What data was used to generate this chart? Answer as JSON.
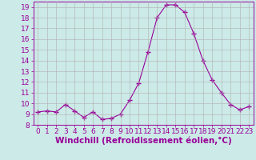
{
  "x": [
    0,
    1,
    2,
    3,
    4,
    5,
    6,
    7,
    8,
    9,
    10,
    11,
    12,
    13,
    14,
    15,
    16,
    17,
    18,
    19,
    20,
    21,
    22,
    23
  ],
  "y": [
    9.2,
    9.3,
    9.2,
    9.9,
    9.3,
    8.7,
    9.2,
    8.5,
    8.6,
    9.0,
    10.3,
    11.9,
    14.8,
    18.0,
    19.2,
    19.2,
    18.5,
    16.5,
    14.0,
    12.2,
    11.0,
    9.9,
    9.4,
    9.7
  ],
  "line_color": "#990099",
  "marker": "+",
  "marker_size": 4,
  "bg_color": "#cceae7",
  "grid_color": "#aaaaaa",
  "xlabel": "Windchill (Refroidissement éolien,°C)",
  "xlabel_color": "#990099",
  "tick_color": "#990099",
  "ylim": [
    8,
    19.5
  ],
  "xlim": [
    -0.5,
    23.5
  ],
  "yticks": [
    8,
    9,
    10,
    11,
    12,
    13,
    14,
    15,
    16,
    17,
    18,
    19
  ],
  "xticks": [
    0,
    1,
    2,
    3,
    4,
    5,
    6,
    7,
    8,
    9,
    10,
    11,
    12,
    13,
    14,
    15,
    16,
    17,
    18,
    19,
    20,
    21,
    22,
    23
  ],
  "tick_fontsize": 6.5,
  "xlabel_fontsize": 7.5
}
